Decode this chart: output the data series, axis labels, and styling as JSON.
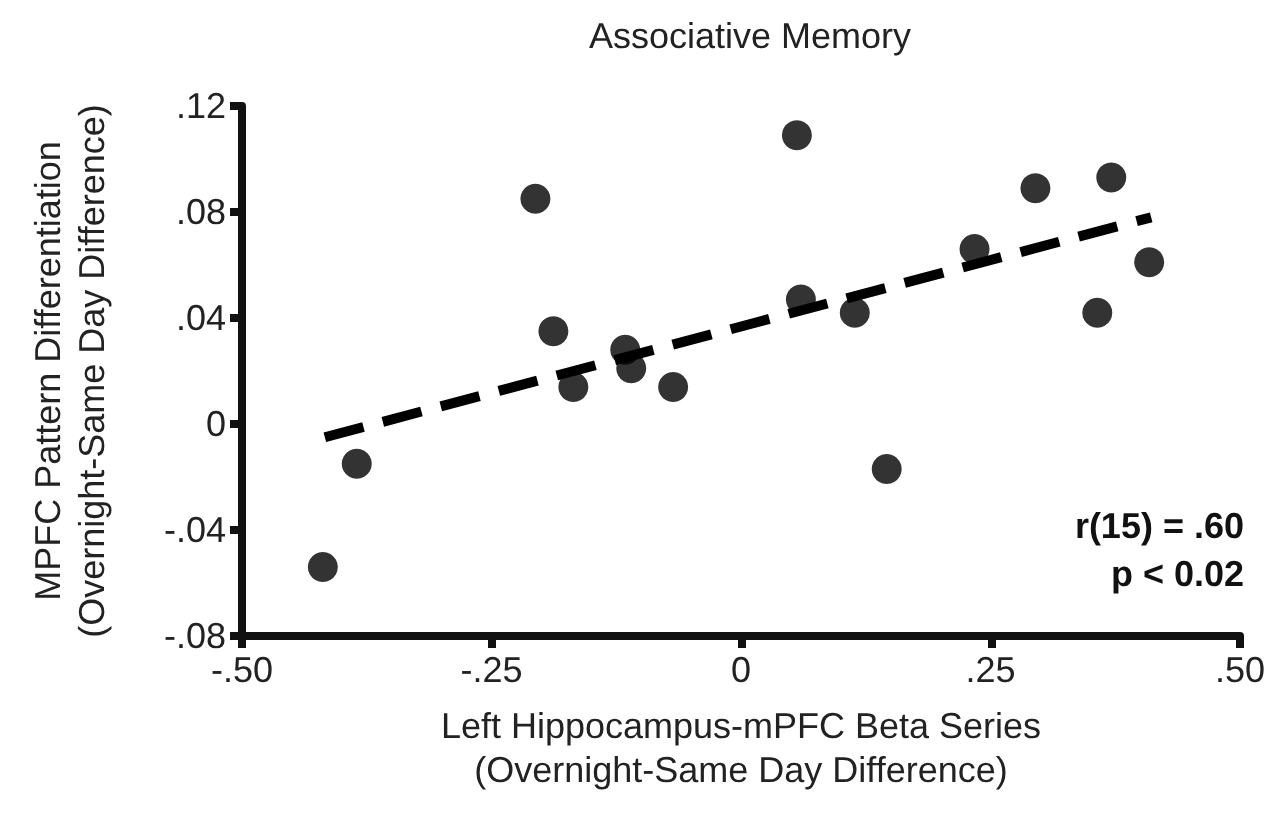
{
  "chart_data": {
    "type": "scatter",
    "title": "Associative Memory",
    "xlabel": "Left Hippocampus-mPFC Beta Series\n(Overnight-Same Day Difference)",
    "ylabel": "MPFC Pattern Differentiation\n(Overnight-Same Day Difference)",
    "annotations": [
      "r(15) = .60",
      "p < 0.02"
    ],
    "x": [
      -0.419,
      -0.385,
      -0.206,
      -0.188,
      -0.168,
      -0.116,
      -0.11,
      -0.068,
      0.056,
      0.06,
      0.114,
      0.146,
      0.234,
      0.295,
      0.357,
      0.371,
      0.409
    ],
    "series": [
      {
        "color": "#000000",
        "marker": "circle",
        "values": [
          -0.054,
          -0.015,
          0.085,
          0.035,
          0.014,
          0.028,
          0.021,
          0.014,
          0.109,
          0.047,
          0.042,
          -0.017,
          0.066,
          0.089,
          0.042,
          0.093,
          0.061
        ]
      },
      {
        "type": "line",
        "color": "#000000",
        "line_style": "dashed",
        "marker": "none",
        "x": [
          -0.417,
          0.411
        ],
        "values": [
          -0.005,
          0.078
        ]
      }
    ],
    "xlim": [
      -0.5,
      0.5
    ],
    "xticks": [
      {
        "value": -0.5,
        "label": "-.50"
      },
      {
        "value": -0.25,
        "label": "-.25"
      },
      0,
      {
        "value": 0.25,
        "label": ".25"
      },
      {
        "value": 0.5,
        "label": ".50"
      }
    ],
    "ylim": [
      -0.08,
      0.12
    ],
    "yticks": [
      {
        "value": -0.08,
        "label": "-.08"
      },
      {
        "value": -0.04,
        "label": "-.04"
      },
      0,
      {
        "value": 0.04,
        "label": ".04"
      },
      {
        "value": 0.08,
        "label": ".08"
      },
      {
        "value": 0.12,
        "label": ".12"
      }
    ],
    "grid": false
  }
}
